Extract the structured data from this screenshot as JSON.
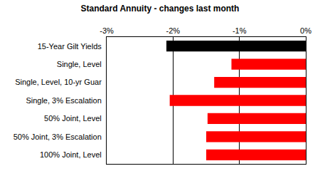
{
  "chart_data": {
    "type": "bar",
    "orientation": "horizontal",
    "title": "Standard Annuity - changes last month",
    "categories": [
      "15-Year Gilt Yields",
      "Single, Level",
      "Single, Level, 10-yr Guar",
      "Single, 3% Escalation",
      "50% Joint, Level",
      "50% Joint, 3% Escalation",
      "100% Joint, Level"
    ],
    "values": [
      -2.1,
      -1.12,
      -1.38,
      -2.05,
      -1.48,
      -1.5,
      -1.5
    ],
    "colors": [
      "#000000",
      "#ff0000",
      "#ff0000",
      "#ff0000",
      "#ff0000",
      "#ff0000",
      "#ff0000"
    ],
    "xlim": [
      -3,
      0
    ],
    "xticks": [
      {
        "value": -3,
        "label": "-3%"
      },
      {
        "value": -2,
        "label": "-2%"
      },
      {
        "value": -1,
        "label": "-1%"
      },
      {
        "value": 0,
        "label": "0%"
      }
    ],
    "grid": true
  }
}
